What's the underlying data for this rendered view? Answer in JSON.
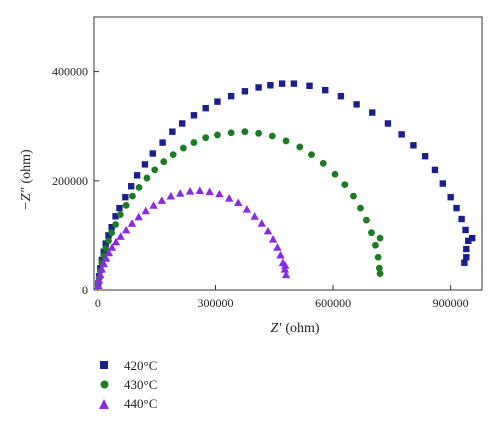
{
  "chart_data": {
    "type": "scatter",
    "xlabel_prefix": "Z",
    "xlabel_prime": "′",
    "xlabel_unit": "(ohm)",
    "ylabel_prefix": "−Z",
    "ylabel_prime": "″",
    "ylabel_unit": "(ohm)",
    "xlim": [
      -10000,
      980000
    ],
    "ylim": [
      0,
      500000
    ],
    "xticks": [
      0,
      300000,
      600000,
      900000
    ],
    "xtick_labels": [
      "0",
      "300000",
      "600000",
      "900000"
    ],
    "yticks": [
      0,
      200000,
      400000
    ],
    "ytick_labels": [
      "0",
      "200000",
      "400000"
    ],
    "legend_position": "bottom-left, below plot",
    "series": [
      {
        "name": "420°C",
        "marker": "square",
        "color": "#1b1f8c",
        "points": [
          [
            1000,
            12000
          ],
          [
            3000,
            25000
          ],
          [
            6000,
            40000
          ],
          [
            10000,
            55000
          ],
          [
            15000,
            70000
          ],
          [
            20000,
            85000
          ],
          [
            27000,
            100000
          ],
          [
            35000,
            115000
          ],
          [
            45000,
            135000
          ],
          [
            55000,
            150000
          ],
          [
            70000,
            170000
          ],
          [
            85000,
            190000
          ],
          [
            100000,
            210000
          ],
          [
            120000,
            230000
          ],
          [
            140000,
            250000
          ],
          [
            165000,
            270000
          ],
          [
            190000,
            290000
          ],
          [
            215000,
            305000
          ],
          [
            245000,
            320000
          ],
          [
            275000,
            333000
          ],
          [
            305000,
            345000
          ],
          [
            340000,
            355000
          ],
          [
            375000,
            364000
          ],
          [
            410000,
            371000
          ],
          [
            440000,
            375000
          ],
          [
            470000,
            378000
          ],
          [
            500000,
            378000
          ],
          [
            540000,
            374000
          ],
          [
            580000,
            366000
          ],
          [
            620000,
            355000
          ],
          [
            660000,
            340000
          ],
          [
            700000,
            325000
          ],
          [
            740000,
            305000
          ],
          [
            775000,
            285000
          ],
          [
            805000,
            265000
          ],
          [
            835000,
            245000
          ],
          [
            860000,
            220000
          ],
          [
            880000,
            195000
          ],
          [
            900000,
            170000
          ],
          [
            915000,
            150000
          ],
          [
            928000,
            130000
          ],
          [
            938000,
            110000
          ],
          [
            945000,
            90000
          ],
          [
            940000,
            75000
          ],
          [
            940000,
            60000
          ],
          [
            935000,
            50000
          ],
          [
            955000,
            95000
          ]
        ]
      },
      {
        "name": "430°C",
        "marker": "circle",
        "color": "#1f7a24",
        "points": [
          [
            1000,
            10000
          ],
          [
            3000,
            22000
          ],
          [
            6000,
            35000
          ],
          [
            10000,
            50000
          ],
          [
            15000,
            63000
          ],
          [
            20000,
            76000
          ],
          [
            27000,
            90000
          ],
          [
            35000,
            105000
          ],
          [
            45000,
            120000
          ],
          [
            57000,
            138000
          ],
          [
            72000,
            155000
          ],
          [
            88000,
            172000
          ],
          [
            105000,
            188000
          ],
          [
            125000,
            205000
          ],
          [
            145000,
            220000
          ],
          [
            168000,
            235000
          ],
          [
            192000,
            248000
          ],
          [
            218000,
            260000
          ],
          [
            245000,
            270000
          ],
          [
            275000,
            279000
          ],
          [
            305000,
            284000
          ],
          [
            340000,
            288000
          ],
          [
            375000,
            290000
          ],
          [
            410000,
            287000
          ],
          [
            445000,
            282000
          ],
          [
            480000,
            273000
          ],
          [
            515000,
            262000
          ],
          [
            545000,
            248000
          ],
          [
            575000,
            232000
          ],
          [
            605000,
            212000
          ],
          [
            630000,
            193000
          ],
          [
            652000,
            172000
          ],
          [
            670000,
            150000
          ],
          [
            685000,
            128000
          ],
          [
            698000,
            105000
          ],
          [
            708000,
            82000
          ],
          [
            715000,
            60000
          ],
          [
            718000,
            40000
          ],
          [
            720000,
            30000
          ],
          [
            720000,
            95000
          ]
        ]
      },
      {
        "name": "440°C",
        "marker": "triangle",
        "color": "#8a2be2",
        "points": [
          [
            1000,
            8000
          ],
          [
            3000,
            18000
          ],
          [
            6000,
            28000
          ],
          [
            10000,
            38000
          ],
          [
            15000,
            48000
          ],
          [
            21000,
            58000
          ],
          [
            28000,
            68000
          ],
          [
            36000,
            78000
          ],
          [
            46000,
            88000
          ],
          [
            58000,
            98000
          ],
          [
            72000,
            110000
          ],
          [
            87000,
            122000
          ],
          [
            104000,
            134000
          ],
          [
            122000,
            145000
          ],
          [
            142000,
            155000
          ],
          [
            163000,
            164000
          ],
          [
            186000,
            172000
          ],
          [
            210000,
            177000
          ],
          [
            235000,
            181000
          ],
          [
            260000,
            182000
          ],
          [
            285000,
            180000
          ],
          [
            310000,
            176000
          ],
          [
            335000,
            168000
          ],
          [
            358000,
            160000
          ],
          [
            380000,
            148000
          ],
          [
            400000,
            135000
          ],
          [
            418000,
            122000
          ],
          [
            434000,
            108000
          ],
          [
            447000,
            93000
          ],
          [
            458000,
            78000
          ],
          [
            466000,
            64000
          ],
          [
            472000,
            50000
          ],
          [
            477000,
            38000
          ],
          [
            480000,
            28000
          ],
          [
            478000,
            45000
          ]
        ]
      }
    ]
  }
}
